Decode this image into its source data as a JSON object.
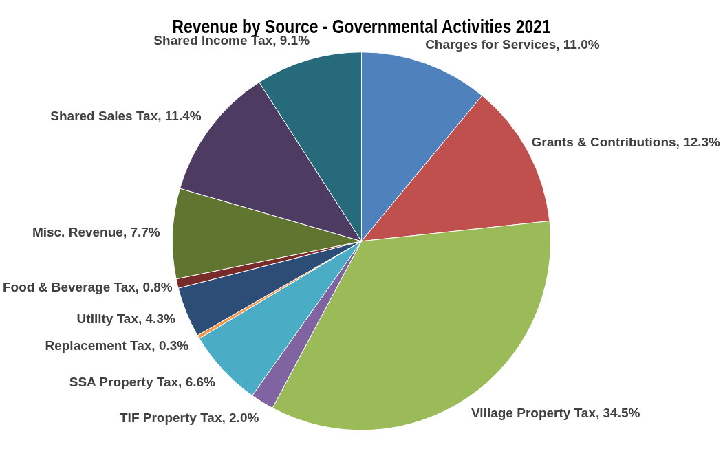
{
  "chart_data": {
    "type": "pie",
    "title": "Revenue by Source - Governmental Activities 2021",
    "categories": [
      "Charges for Services",
      "Grants & Contributions",
      "Village Property Tax",
      "TIF Property Tax",
      "SSA Property Tax",
      "Replacement Tax",
      "Utility Tax",
      "Food & Beverage Tax",
      "Misc. Revenue",
      "Shared Sales Tax",
      "Shared Income Tax"
    ],
    "values": [
      11.0,
      12.3,
      34.5,
      2.0,
      6.6,
      0.3,
      4.3,
      0.8,
      7.7,
      11.4,
      9.1
    ],
    "value_labels": [
      "11.0%",
      "12.3%",
      "34.5%",
      "2.0%",
      "6.6%",
      "0.3%",
      "4.3%",
      "0.8%",
      "7.7%",
      "11.4%",
      "9.1%"
    ],
    "colors": [
      "#4f81bd",
      "#c0504d",
      "#9bbb59",
      "#8064a2",
      "#4bacc6",
      "#f79646",
      "#2c4d75",
      "#772c2a",
      "#5f7530",
      "#4d3b62",
      "#276a7c"
    ],
    "legend": false
  }
}
